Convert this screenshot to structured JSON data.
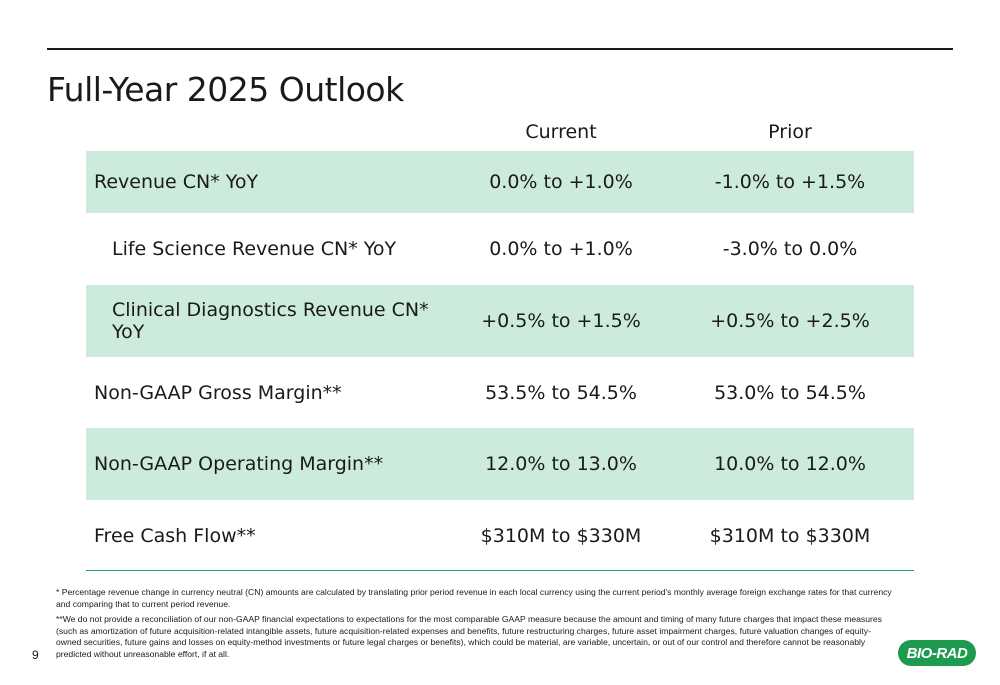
{
  "slide": {
    "title": "Full-Year 2025 Outlook",
    "page_number": "9",
    "logo_text": "BIO-RAD"
  },
  "table": {
    "headers": {
      "label": "",
      "current": "Current",
      "prior": "Prior"
    },
    "rows": [
      {
        "label": "Revenue CN* YoY",
        "current": "0.0% to +1.0%",
        "prior": "-1.0% to +1.5%"
      },
      {
        "label": "Life Science Revenue CN* YoY",
        "current": "0.0% to +1.0%",
        "prior": "-3.0% to 0.0%"
      },
      {
        "label": "Clinical Diagnostics Revenue CN* YoY",
        "current": "+0.5% to +1.5%",
        "prior": "+0.5% to +2.5%"
      },
      {
        "label": "Non-GAAP Gross Margin**",
        "current": "53.5% to 54.5%",
        "prior": "53.0% to 54.5%"
      },
      {
        "label": "Non-GAAP Operating Margin**",
        "current": "12.0% to 13.0%",
        "prior": "10.0% to 12.0%"
      },
      {
        "label": "Free Cash Flow**",
        "current": "$310M to $330M",
        "prior": "$310M to $330M"
      }
    ]
  },
  "footnotes": {
    "note1": "* Percentage revenue change in currency neutral (CN) amounts are calculated by translating prior period revenue in each local currency using the current period's monthly average foreign exchange rates for that currency and comparing that to current period revenue.",
    "note2": "**We do not provide a reconciliation of our non-GAAP financial expectations to expectations for the most comparable GAAP measure because the amount and timing of many future charges that impact these measures (such as amortization of future acquisition-related intangible assets, future acquisition-related expenses and benefits, future restructuring charges, future asset impairment charges, future valuation changes of equity-owned securities, future gains and losses on equity-method investments or future legal charges or benefits), which could be material, are variable, uncertain, or out of our control and therefore cannot be reasonably predicted without unreasonable effort, if at all."
  },
  "colors": {
    "row_shade": "#cdebdc",
    "rule_green": "#2aa35f",
    "logo_green": "#1e9a4f"
  }
}
